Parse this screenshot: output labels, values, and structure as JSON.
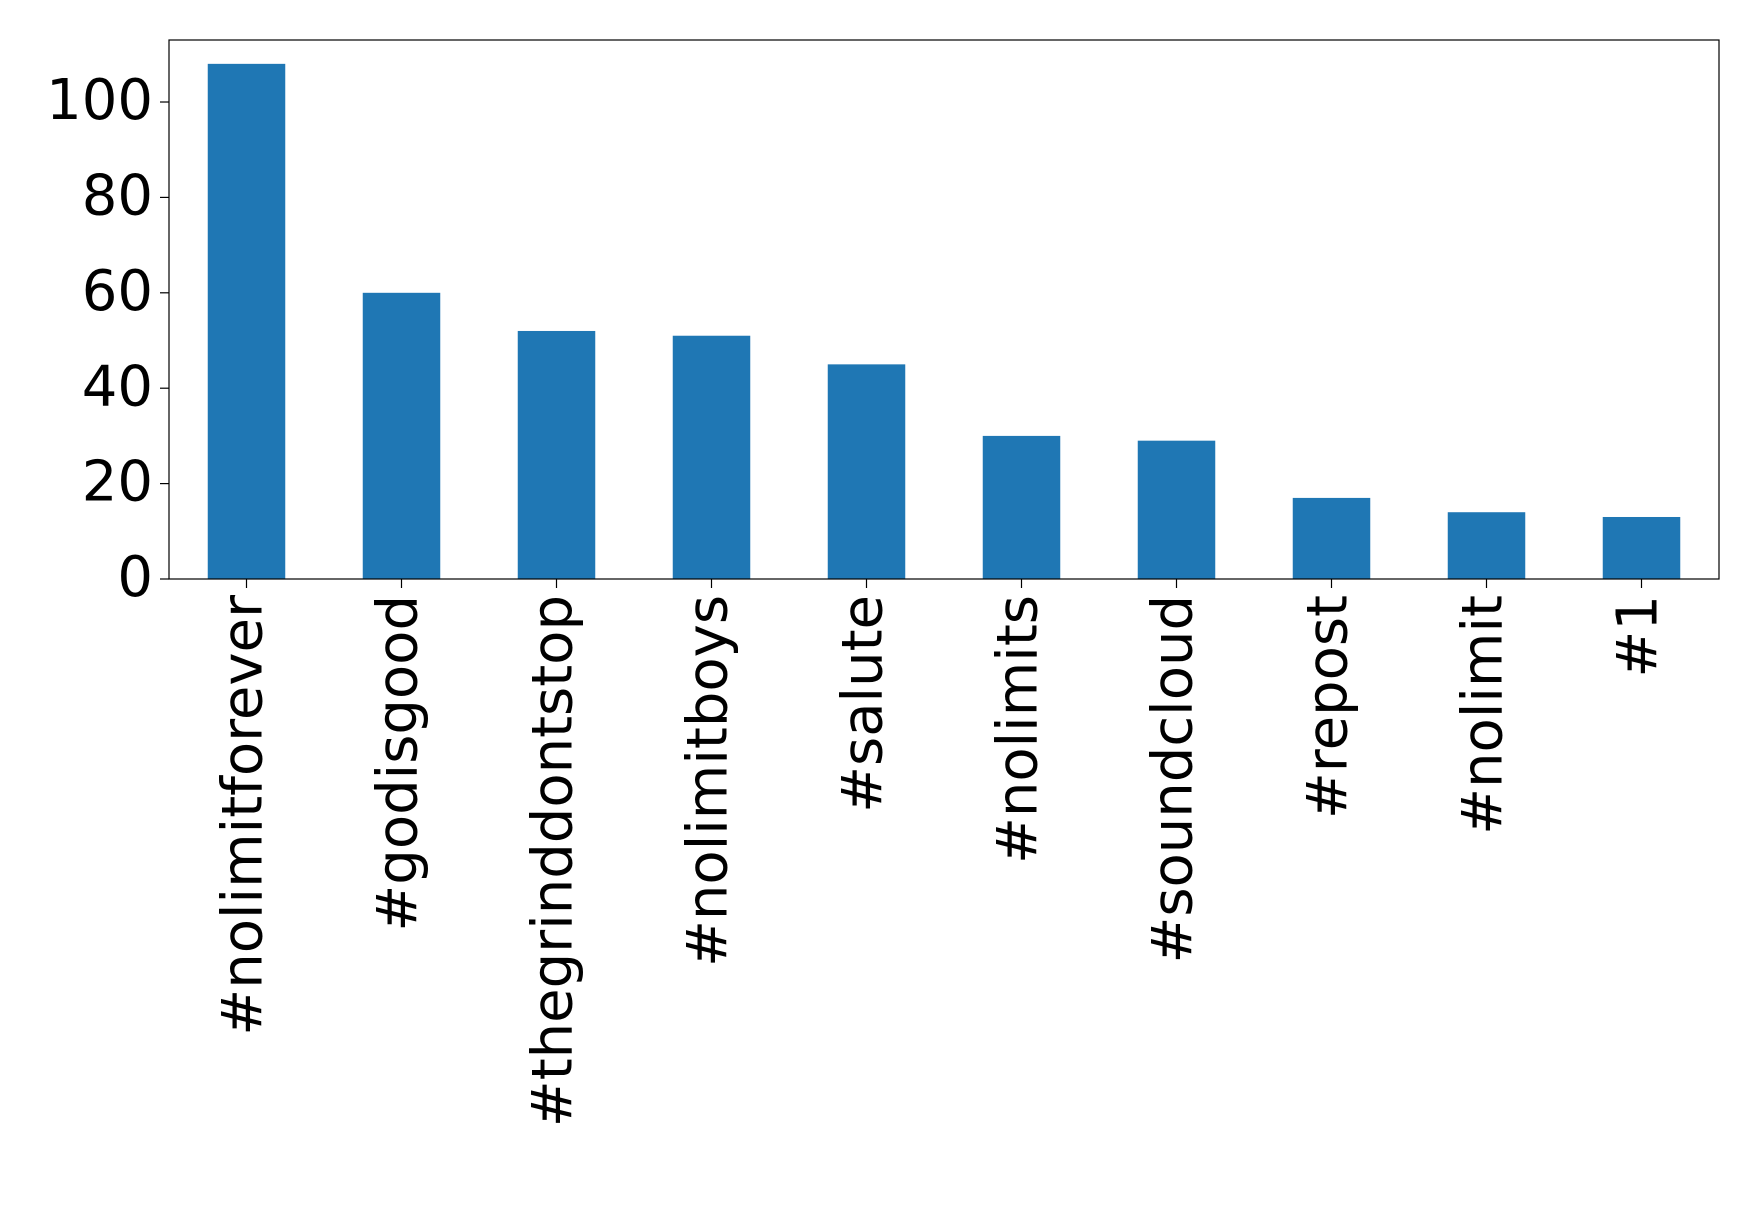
{
  "chart_data": {
    "type": "bar",
    "categories": [
      "#nolimitforever",
      "#godisgood",
      "#thegrinddontstop",
      "#nolimitboys",
      "#salute",
      "#nolimits",
      "#soundcloud",
      "#repost",
      "#nolimit",
      "#1"
    ],
    "values": [
      108,
      60,
      52,
      51,
      45,
      30,
      29,
      17,
      14,
      13
    ],
    "color": "#1f77b4",
    "ylim": [
      0,
      113
    ],
    "yticks": [
      0,
      20,
      40,
      60,
      80,
      100
    ],
    "grid": false
  }
}
